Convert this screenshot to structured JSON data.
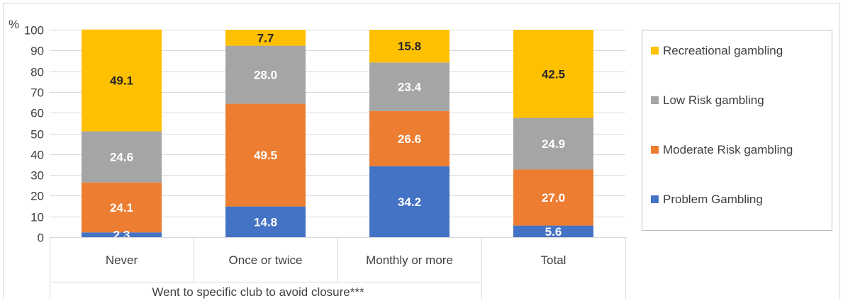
{
  "chart_data": {
    "type": "bar",
    "stacked": true,
    "title": "",
    "ylabel": "%",
    "xlabel": "Went to specific club to avoid closure***",
    "ylim": [
      0,
      100
    ],
    "yticks": [
      "0",
      "10",
      "20",
      "30",
      "40",
      "50",
      "60",
      "70",
      "80",
      "90",
      "100"
    ],
    "categories": [
      "Never",
      "Once or twice",
      "Monthly or more",
      "Total"
    ],
    "grid": true,
    "legend_position": "right",
    "series": [
      {
        "name": "Problem Gambling",
        "color": "#4472C4",
        "label_color": "#ffffff",
        "values": [
          2.3,
          14.8,
          34.2,
          5.6
        ],
        "labels": [
          "2.3",
          "14.8",
          "34.2",
          "5.6"
        ]
      },
      {
        "name": "Moderate Risk gambling",
        "color": "#ED7D31",
        "label_color": "#ffffff",
        "values": [
          24.1,
          49.5,
          26.6,
          27.0
        ],
        "labels": [
          "24.1",
          "49.5",
          "26.6",
          "27.0"
        ]
      },
      {
        "name": "Low Risk gambling",
        "color": "#A5A5A5",
        "label_color": "#ffffff",
        "values": [
          24.6,
          28.0,
          23.4,
          24.9
        ],
        "labels": [
          "24.6",
          "28.0",
          "23.4",
          "24.9"
        ]
      },
      {
        "name": "Recreational gambling",
        "color": "#FFC000",
        "label_color": "#262626",
        "values": [
          49.1,
          7.7,
          15.8,
          42.5
        ],
        "labels": [
          "49.1",
          "7.7",
          "15.8",
          "42.5"
        ]
      }
    ]
  }
}
